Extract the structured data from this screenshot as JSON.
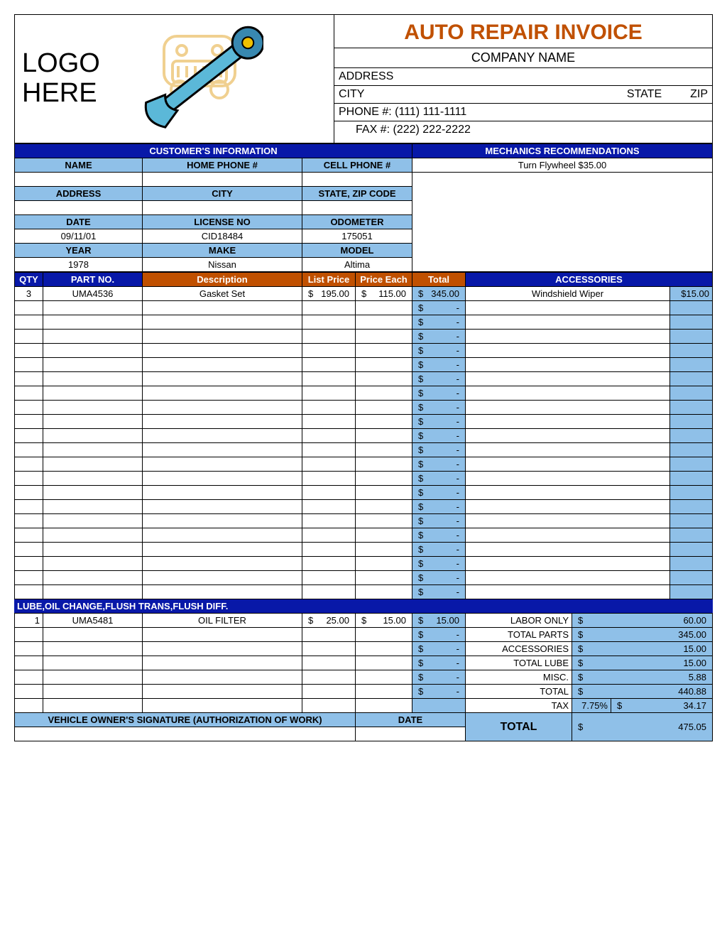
{
  "header": {
    "logo_text_line1": "LOGO",
    "logo_text_line2": "HERE",
    "invoice_title": "AUTO REPAIR INVOICE",
    "company_name": "COMPANY NAME",
    "address_label": "ADDRESS",
    "city_label": "CITY",
    "state_label": "STATE",
    "zip_label": "ZIP",
    "phone_label": "PHONE #:",
    "phone_value": "(111) 111-1111",
    "fax_label": "FAX #:",
    "fax_value": "(222) 222-2222"
  },
  "customer": {
    "section_title": "CUSTOMER'S INFORMATION",
    "name_label": "NAME",
    "home_phone_label": "HOME PHONE #",
    "cell_phone_label": "CELL PHONE #",
    "address_label": "ADDRESS",
    "city_label": "CITY",
    "state_zip_label": "STATE, ZIP CODE",
    "date_label": "DATE",
    "date_value": "09/11/01",
    "license_label": "LICENSE NO",
    "license_value": "CID18484",
    "odometer_label": "ODOMETER",
    "odometer_value": "175051",
    "year_label": "YEAR",
    "year_value": "1978",
    "make_label": "MAKE",
    "make_value": "Nissan",
    "model_label": "MODEL",
    "model_value": "Altima"
  },
  "mechanics": {
    "section_title": "MECHANICS RECOMMENDATIONS",
    "item": "Turn Flywheel  $35.00"
  },
  "parts_headers": {
    "qty": "QTY",
    "part_no": "PART NO.",
    "description": "Description",
    "list_price": "List Price",
    "price_each": "Price Each",
    "total": "Total",
    "accessories": "ACCESSORIES"
  },
  "parts_row1": {
    "qty": "3",
    "part_no": "UMA4536",
    "description": "Gasket Set",
    "list_price": "195.00",
    "price_each": "115.00",
    "total": "345.00",
    "accessory_name": "Windshield Wiper",
    "accessory_price": "$15.00"
  },
  "lube_section": {
    "title": "LUBE,OIL CHANGE,FLUSH TRANS,FLUSH DIFF."
  },
  "lube_row1": {
    "qty": "1",
    "part_no": "UMA5481",
    "description": "OIL FILTER",
    "list_price": "25.00",
    "price_each": "15.00",
    "total": "15.00"
  },
  "summary": {
    "labor_only_label": "LABOR ONLY",
    "labor_only_value": "60.00",
    "total_parts_label": "TOTAL PARTS",
    "total_parts_value": "345.00",
    "accessories_label": "ACCESSORIES",
    "accessories_value": "15.00",
    "total_lube_label": "TOTAL LUBE",
    "total_lube_value": "15.00",
    "misc_label": "MISC.",
    "misc_value": "5.88",
    "total_label": "TOTAL",
    "total_value": "440.88",
    "tax_label": "TAX",
    "tax_rate": "7.75%",
    "tax_value": "34.17",
    "grand_total_label": "TOTAL",
    "grand_total_value": "475.05"
  },
  "signature": {
    "label": "VEHICLE OWNER'S SIGNATURE (AUTHORIZATION OF WORK)",
    "date_label": "DATE"
  },
  "colors": {
    "dark_blue": "#0818a8",
    "light_blue": "#8fc0e8",
    "accent": "#c05000"
  }
}
